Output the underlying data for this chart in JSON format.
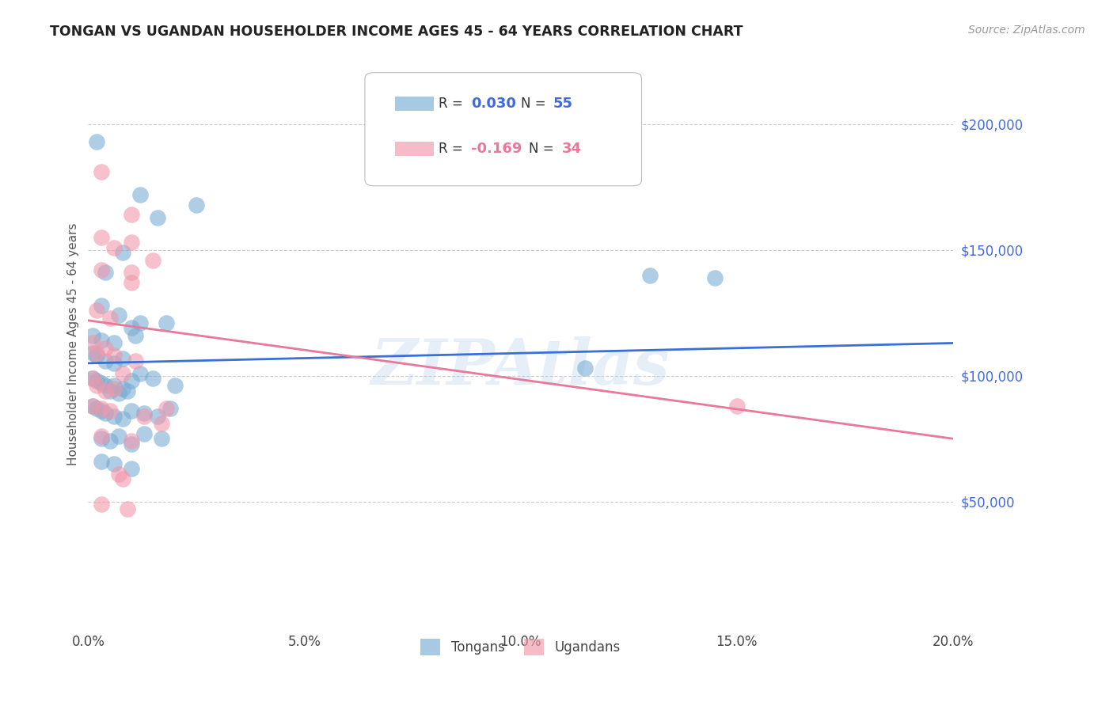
{
  "title": "TONGAN VS UGANDAN HOUSEHOLDER INCOME AGES 45 - 64 YEARS CORRELATION CHART",
  "source": "Source: ZipAtlas.com",
  "ylabel": "Householder Income Ages 45 - 64 years",
  "xlim": [
    0.0,
    0.2
  ],
  "ylim": [
    0,
    225000
  ],
  "xticks": [
    0.0,
    0.05,
    0.1,
    0.15,
    0.2
  ],
  "xtick_labels": [
    "0.0%",
    "5.0%",
    "10.0%",
    "15.0%",
    "20.0%"
  ],
  "ytick_values_right": [
    50000,
    100000,
    150000,
    200000
  ],
  "ytick_labels_right": [
    "$50,000",
    "$100,000",
    "$150,000",
    "$200,000"
  ],
  "watermark": "ZIPAtlas",
  "tongan_color": "#7aadd4",
  "ugandan_color": "#f097aa",
  "tongan_line_color": "#3a6fd8",
  "ugandan_line_color": "#e8799a",
  "background_color": "#ffffff",
  "grid_color": "#cccccc",
  "tongan_R": 0.03,
  "ugandan_R": -0.169,
  "tongan_N": 55,
  "ugandan_N": 34,
  "tongan_line": [
    0.0,
    105000,
    0.2,
    113000
  ],
  "ugandan_line": [
    0.0,
    122000,
    0.2,
    75000
  ],
  "tongan_points": [
    [
      0.002,
      193000
    ],
    [
      0.012,
      172000
    ],
    [
      0.016,
      163000
    ],
    [
      0.008,
      149000
    ],
    [
      0.004,
      141000
    ],
    [
      0.025,
      168000
    ],
    [
      0.003,
      128000
    ],
    [
      0.007,
      124000
    ],
    [
      0.012,
      121000
    ],
    [
      0.001,
      116000
    ],
    [
      0.003,
      114000
    ],
    [
      0.006,
      113000
    ],
    [
      0.01,
      119000
    ],
    [
      0.001,
      109000
    ],
    [
      0.002,
      108000
    ],
    [
      0.004,
      106000
    ],
    [
      0.006,
      105000
    ],
    [
      0.008,
      107000
    ],
    [
      0.011,
      116000
    ],
    [
      0.001,
      99000
    ],
    [
      0.002,
      98000
    ],
    [
      0.003,
      97000
    ],
    [
      0.004,
      96000
    ],
    [
      0.005,
      94000
    ],
    [
      0.006,
      96000
    ],
    [
      0.007,
      93000
    ],
    [
      0.008,
      95000
    ],
    [
      0.009,
      94000
    ],
    [
      0.01,
      98000
    ],
    [
      0.012,
      101000
    ],
    [
      0.015,
      99000
    ],
    [
      0.018,
      121000
    ],
    [
      0.02,
      96000
    ],
    [
      0.001,
      88000
    ],
    [
      0.002,
      87000
    ],
    [
      0.003,
      86000
    ],
    [
      0.004,
      85000
    ],
    [
      0.006,
      84000
    ],
    [
      0.008,
      83000
    ],
    [
      0.01,
      86000
    ],
    [
      0.013,
      85000
    ],
    [
      0.016,
      84000
    ],
    [
      0.019,
      87000
    ],
    [
      0.003,
      75000
    ],
    [
      0.005,
      74000
    ],
    [
      0.007,
      76000
    ],
    [
      0.01,
      73000
    ],
    [
      0.013,
      77000
    ],
    [
      0.017,
      75000
    ],
    [
      0.003,
      66000
    ],
    [
      0.006,
      65000
    ],
    [
      0.01,
      63000
    ],
    [
      0.13,
      140000
    ],
    [
      0.145,
      139000
    ],
    [
      0.115,
      103000
    ]
  ],
  "ugandan_points": [
    [
      0.003,
      181000
    ],
    [
      0.01,
      164000
    ],
    [
      0.003,
      155000
    ],
    [
      0.006,
      151000
    ],
    [
      0.01,
      153000
    ],
    [
      0.003,
      142000
    ],
    [
      0.01,
      137000
    ],
    [
      0.015,
      146000
    ],
    [
      0.002,
      126000
    ],
    [
      0.005,
      123000
    ],
    [
      0.01,
      141000
    ],
    [
      0.001,
      113000
    ],
    [
      0.002,
      109000
    ],
    [
      0.004,
      111000
    ],
    [
      0.006,
      108000
    ],
    [
      0.001,
      99000
    ],
    [
      0.002,
      96000
    ],
    [
      0.004,
      94000
    ],
    [
      0.006,
      95000
    ],
    [
      0.008,
      101000
    ],
    [
      0.011,
      106000
    ],
    [
      0.001,
      88000
    ],
    [
      0.003,
      87000
    ],
    [
      0.005,
      86000
    ],
    [
      0.013,
      84000
    ],
    [
      0.018,
      87000
    ],
    [
      0.003,
      76000
    ],
    [
      0.01,
      74000
    ],
    [
      0.017,
      81000
    ],
    [
      0.007,
      61000
    ],
    [
      0.008,
      59000
    ],
    [
      0.15,
      88000
    ],
    [
      0.003,
      49000
    ],
    [
      0.009,
      47000
    ]
  ]
}
